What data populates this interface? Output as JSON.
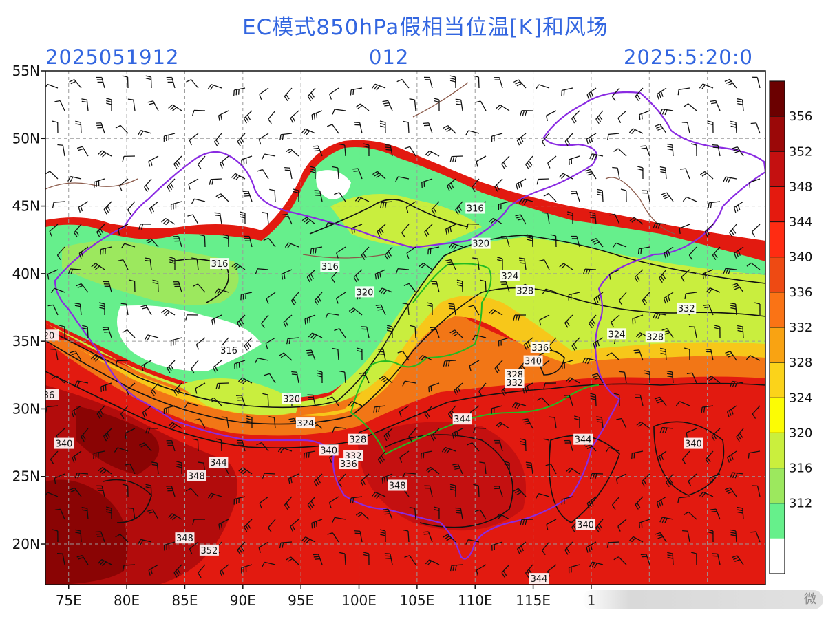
{
  "header": {
    "title": "EC模式850hPa假相当位温[K]和风场",
    "init_time": "2025051912",
    "forecast_hour": "012",
    "valid_time": "2025:5:20:0"
  },
  "map": {
    "extent": {
      "lon_min": 73,
      "lon_max": 135,
      "lat_min": 17,
      "lat_max": 55
    },
    "lat_ticks": [
      {
        "value": 55,
        "label": "55N"
      },
      {
        "value": 50,
        "label": "50N"
      },
      {
        "value": 45,
        "label": "45N"
      },
      {
        "value": 40,
        "label": "40N"
      },
      {
        "value": 35,
        "label": "35N"
      },
      {
        "value": 30,
        "label": "30N"
      },
      {
        "value": 25,
        "label": "25N"
      },
      {
        "value": 20,
        "label": "20N"
      }
    ],
    "lon_ticks": [
      {
        "value": 75,
        "label": "75E"
      },
      {
        "value": 80,
        "label": "80E"
      },
      {
        "value": 85,
        "label": "85E"
      },
      {
        "value": 90,
        "label": "90E"
      },
      {
        "value": 95,
        "label": "95E"
      },
      {
        "value": 100,
        "label": "100E"
      },
      {
        "value": 105,
        "label": "105E"
      },
      {
        "value": 110,
        "label": "110E"
      },
      {
        "value": 115,
        "label": "115E"
      },
      {
        "value": 120,
        "label": "1"
      }
    ],
    "contour_labels": [
      {
        "text": "316",
        "lon": 110,
        "lat": 44.8
      },
      {
        "text": "320",
        "lon": 110.5,
        "lat": 42.2
      },
      {
        "text": "316",
        "lon": 88,
        "lat": 40.7
      },
      {
        "text": "316",
        "lon": 97.5,
        "lat": 40.5
      },
      {
        "text": "320",
        "lon": 100.5,
        "lat": 38.6
      },
      {
        "text": "324",
        "lon": 113,
        "lat": 39.8
      },
      {
        "text": "328",
        "lon": 114.3,
        "lat": 38.7
      },
      {
        "text": "332",
        "lon": 128.2,
        "lat": 37.4
      },
      {
        "text": "324",
        "lon": 122.2,
        "lat": 35.5
      },
      {
        "text": "328",
        "lon": 125.5,
        "lat": 35.3
      },
      {
        "text": "336",
        "lon": 115.6,
        "lat": 34.5
      },
      {
        "text": "340",
        "lon": 115,
        "lat": 33.5
      },
      {
        "text": "328",
        "lon": 113.4,
        "lat": 32.5
      },
      {
        "text": "332",
        "lon": 113.4,
        "lat": 31.9
      },
      {
        "text": "316",
        "lon": 88.8,
        "lat": 34.3
      },
      {
        "text": "320",
        "lon": 94.2,
        "lat": 30.7
      },
      {
        "text": "324",
        "lon": 95.4,
        "lat": 28.9
      },
      {
        "text": "328",
        "lon": 99.9,
        "lat": 27.7
      },
      {
        "text": "344",
        "lon": 108.9,
        "lat": 29.2
      },
      {
        "text": "344",
        "lon": 119.3,
        "lat": 27.7
      },
      {
        "text": "340",
        "lon": 128.8,
        "lat": 27.4
      },
      {
        "text": "340",
        "lon": 74.6,
        "lat": 27.4
      },
      {
        "text": "344",
        "lon": 87.9,
        "lat": 26.0
      },
      {
        "text": "348",
        "lon": 86,
        "lat": 25.0
      },
      {
        "text": "340",
        "lon": 97.4,
        "lat": 26.9
      },
      {
        "text": "332",
        "lon": 99.5,
        "lat": 26.5
      },
      {
        "text": "336",
        "lon": 99.1,
        "lat": 25.9
      },
      {
        "text": "348",
        "lon": 103.3,
        "lat": 24.3
      },
      {
        "text": "340",
        "lon": 119.5,
        "lat": 21.4
      },
      {
        "text": "348",
        "lon": 85,
        "lat": 20.4
      },
      {
        "text": "352",
        "lon": 87.1,
        "lat": 19.5
      },
      {
        "text": "344",
        "lon": 115.5,
        "lat": 17.4
      },
      {
        "text": "20",
        "lon": 73.3,
        "lat": 35.4
      },
      {
        "text": "36",
        "lon": 73.3,
        "lat": 31.0
      }
    ]
  },
  "colorbar": {
    "labels": [
      "356",
      "352",
      "348",
      "344",
      "340",
      "336",
      "332",
      "328",
      "324",
      "320",
      "316",
      "312"
    ],
    "colors": [
      "#6b0000",
      "#9b0808",
      "#c41010",
      "#e41a0f",
      "#ff2c12",
      "#ee4a13",
      "#fa7315",
      "#f9a312",
      "#fbd31a",
      "#fcfc04",
      "#caef3d",
      "#9ce85e",
      "#66f08b",
      "#ffffff"
    ]
  },
  "watermark_text": "微"
}
